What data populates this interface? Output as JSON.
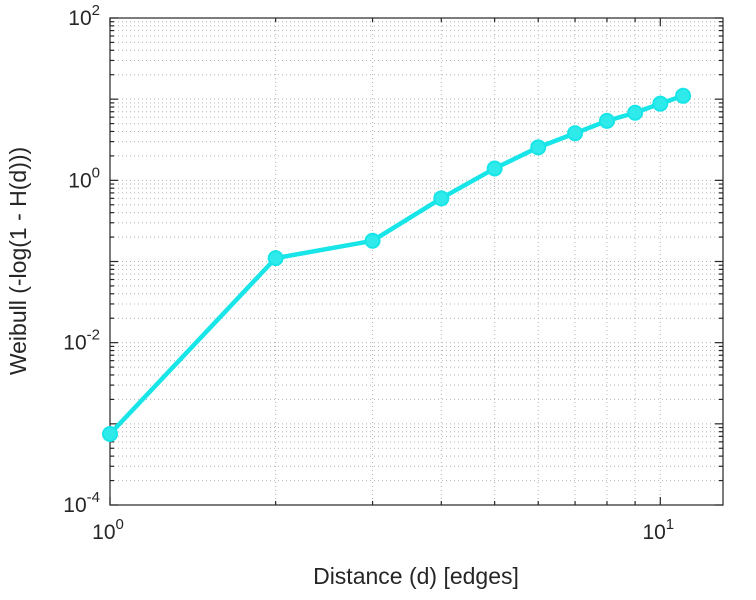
{
  "chart_data": {
    "type": "line",
    "title": "",
    "xlabel": "Distance (d) [edges]",
    "ylabel": "Weibull (-log(1 - H(d)))",
    "x_scale": "log",
    "y_scale": "log",
    "xlim": [
      1,
      13
    ],
    "ylim": [
      0.0001,
      100
    ],
    "x": [
      1,
      2,
      3,
      4,
      5,
      6,
      7,
      8,
      9,
      10,
      11
    ],
    "y": [
      0.00075,
      0.11,
      0.18,
      0.6,
      1.4,
      2.55,
      3.8,
      5.4,
      6.8,
      8.8,
      11.0
    ],
    "x_ticks": [
      {
        "value": 1,
        "base": "10",
        "exp": "0"
      },
      {
        "value": 10,
        "base": "10",
        "exp": "1"
      }
    ],
    "y_ticks": [
      {
        "value": 0.0001,
        "base": "10",
        "exp": "-4"
      },
      {
        "value": 0.01,
        "base": "10",
        "exp": "-2"
      },
      {
        "value": 1,
        "base": "10",
        "exp": "0"
      },
      {
        "value": 100,
        "base": "10",
        "exp": "2"
      }
    ],
    "grid": "minor",
    "legend": "none",
    "colors": {
      "line": "#17E5E8",
      "marker_fill": "#2FEAEA",
      "grid": "#b4b4b4",
      "axis": "#262626",
      "background": "#ffffff"
    }
  }
}
